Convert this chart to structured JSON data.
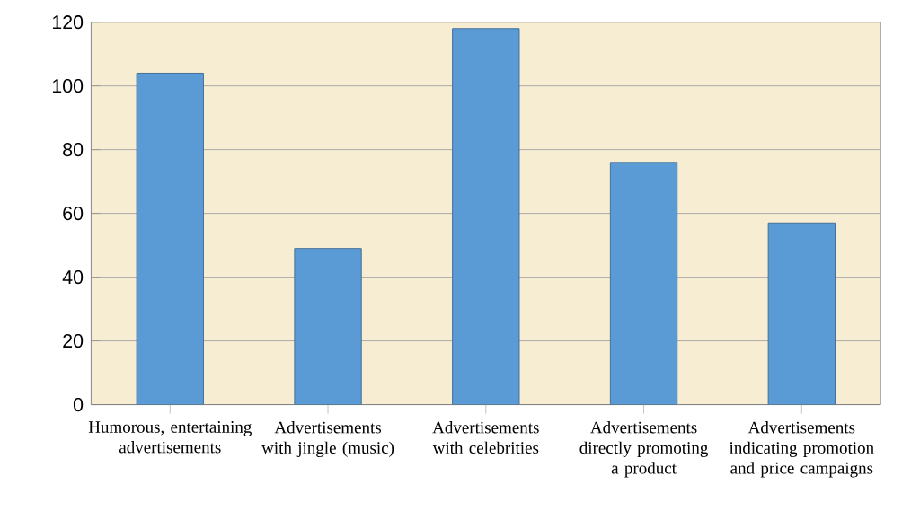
{
  "chart_data": {
    "type": "bar",
    "categories": [
      "Humorous, entertaining advertisements",
      "Advertisements with jingle (music)",
      "Advertisements with celebrities",
      "Advertisements directly promoting a product",
      "Advertisements indicating promotion and price campaigns"
    ],
    "values": [
      104,
      49,
      118,
      76,
      57
    ],
    "color": "#5b9bd5",
    "ylim": [
      0,
      120
    ],
    "yticks": [
      0,
      20,
      40,
      60,
      80,
      100,
      120
    ],
    "grid": "y"
  }
}
